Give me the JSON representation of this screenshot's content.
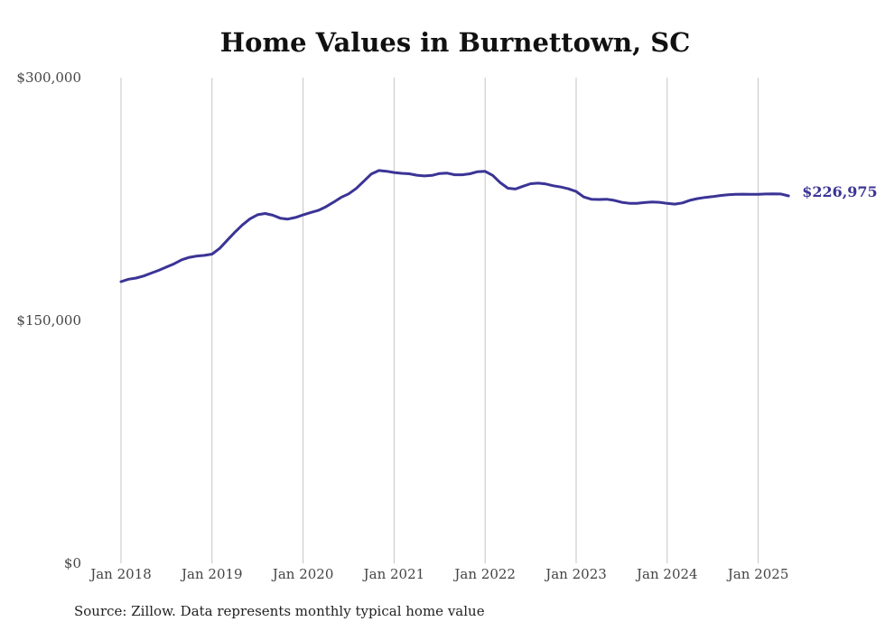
{
  "chart_data": {
    "type": "line",
    "title": "Home Values in Burnettown, SC",
    "xlabel": "",
    "ylabel": "",
    "x_tick_labels": [
      "Jan 2018",
      "Jan 2019",
      "Jan 2020",
      "Jan 2021",
      "Jan 2022",
      "Jan 2023",
      "Jan 2024",
      "Jan 2025"
    ],
    "y_tick_labels": [
      "$0",
      "$150,000",
      "$300,000"
    ],
    "y_ticks": [
      0,
      150000,
      300000
    ],
    "ylim": [
      0,
      300000
    ],
    "grid": "vertical",
    "line_color": "#3b3496",
    "end_label": "$226,975",
    "series": [
      {
        "x": [
          "2018-01",
          "2018-02",
          "2018-03",
          "2018-04",
          "2018-05",
          "2018-06",
          "2018-07",
          "2018-08",
          "2018-09",
          "2018-10",
          "2018-11",
          "2018-12",
          "2019-01",
          "2019-02",
          "2019-03",
          "2019-04",
          "2019-05",
          "2019-06",
          "2019-07",
          "2019-08",
          "2019-09",
          "2019-10",
          "2019-11",
          "2019-12",
          "2020-01",
          "2020-02",
          "2020-03",
          "2020-04",
          "2020-05",
          "2020-06",
          "2020-07",
          "2020-08",
          "2020-09",
          "2020-10",
          "2020-11",
          "2020-12",
          "2021-01",
          "2021-02",
          "2021-03",
          "2021-04",
          "2021-05",
          "2021-06",
          "2021-07",
          "2021-08",
          "2021-09",
          "2021-10",
          "2021-11",
          "2021-12",
          "2022-01",
          "2022-02",
          "2022-03",
          "2022-04",
          "2022-05",
          "2022-06",
          "2022-07",
          "2022-08",
          "2022-09",
          "2022-10",
          "2022-11",
          "2022-12",
          "2023-01",
          "2023-02",
          "2023-03",
          "2023-04",
          "2023-05",
          "2023-06",
          "2023-07",
          "2023-08",
          "2023-09",
          "2023-10",
          "2023-11",
          "2023-12",
          "2024-01",
          "2024-02",
          "2024-03",
          "2024-04",
          "2024-05",
          "2024-06",
          "2024-07",
          "2024-08",
          "2024-09",
          "2024-10",
          "2024-11",
          "2024-12",
          "2025-01",
          "2025-02",
          "2025-03",
          "2025-04",
          "2025-05"
        ],
        "values": [
          174000,
          175500,
          176200,
          177500,
          179300,
          181000,
          183000,
          185000,
          187500,
          189000,
          189800,
          190200,
          191000,
          194500,
          199500,
          204500,
          209000,
          212800,
          215300,
          216100,
          215000,
          213200,
          212600,
          213600,
          215200,
          216700,
          218000,
          220200,
          223000,
          226000,
          228200,
          231500,
          236000,
          240500,
          242600,
          242200,
          241400,
          240900,
          240600,
          239700,
          239300,
          239600,
          240800,
          241000,
          240000,
          240000,
          240600,
          241900,
          242100,
          239600,
          235100,
          231700,
          231200,
          232900,
          234500,
          234800,
          234300,
          233200,
          232400,
          231300,
          229700,
          226300,
          224900,
          224700,
          224900,
          224200,
          223000,
          222400,
          222400,
          222800,
          223200,
          223000,
          222300,
          221900,
          222600,
          224200,
          225300,
          226000,
          226500,
          227200,
          227600,
          227900,
          228000,
          227900,
          227900,
          228100,
          228200,
          228100,
          226975
        ]
      }
    ]
  },
  "footer": {
    "source": "Source: Zillow. Data represents monthly typical home value"
  }
}
